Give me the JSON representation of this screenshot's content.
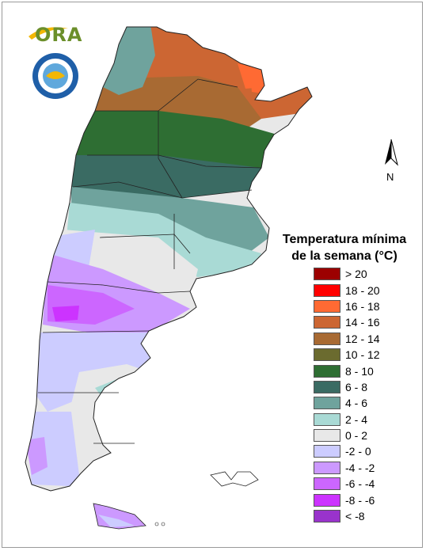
{
  "logo": {
    "text": "ORA"
  },
  "north_arrow": {
    "label": "N"
  },
  "legend": {
    "title_line1": "Temperatura mínima",
    "title_line2": "de la semana (°C)",
    "items": [
      {
        "label": "> 20",
        "color": "#9c0000"
      },
      {
        "label": "18 - 20",
        "color": "#ff0000"
      },
      {
        "label": "16 - 18",
        "color": "#ff6a33"
      },
      {
        "label": "14 - 16",
        "color": "#cc6633"
      },
      {
        "label": "12 - 14",
        "color": "#a86a33"
      },
      {
        "label": "10 - 12",
        "color": "#6b6b2f"
      },
      {
        "label": "8 - 10",
        "color": "#2e6e33"
      },
      {
        "label": "6 - 8",
        "color": "#3a6b63"
      },
      {
        "label": "4 - 6",
        "color": "#6fa39d"
      },
      {
        "label": "2 - 4",
        "color": "#a9dad5"
      },
      {
        "label": "0 - 2",
        "color": "#e8e8e8"
      },
      {
        "label": "-2 - 0",
        "color": "#ccccff"
      },
      {
        "label": "-4 - -2",
        "color": "#cc99ff"
      },
      {
        "label": "-6 - -4",
        "color": "#cc66ff"
      },
      {
        "label": "-8 - -6",
        "color": "#cc33ff"
      },
      {
        "label": "< -8",
        "color": "#9933cc"
      }
    ]
  }
}
